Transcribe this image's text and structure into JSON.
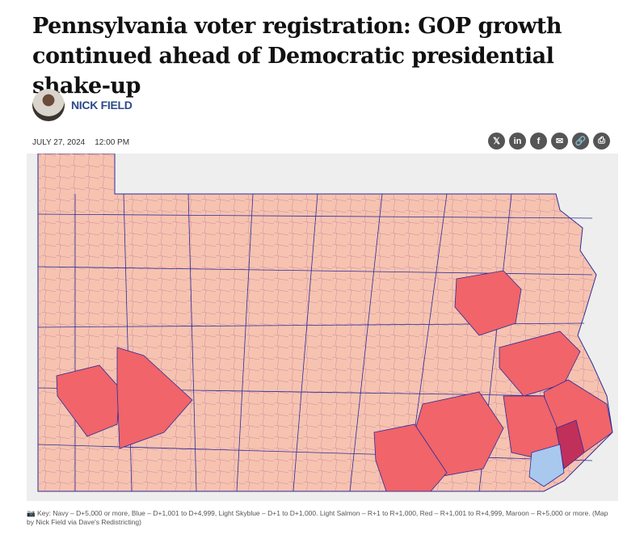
{
  "headline": "Pennsylvania voter registration: GOP growth continued ahead of Democratic presidential shake-up",
  "author": {
    "name": "NICK FIELD"
  },
  "meta": {
    "date": "JULY 27, 2024",
    "time": "12:00 PM"
  },
  "share": [
    {
      "icon": "x-icon",
      "glyph": "𝕏"
    },
    {
      "icon": "linkedin-icon",
      "glyph": "in"
    },
    {
      "icon": "facebook-icon",
      "glyph": "f"
    },
    {
      "icon": "email-icon",
      "glyph": "✉"
    },
    {
      "icon": "link-icon",
      "glyph": "🔗"
    },
    {
      "icon": "print-icon",
      "glyph": "⎙"
    }
  ],
  "map": {
    "colors": {
      "light_salmon": "#f6c3b0",
      "red": "#f0646a",
      "maroon": "#c0305a",
      "light_skyblue": "#a9c8ee",
      "border": "#2b2b9a",
      "background": "#eeeeee"
    }
  },
  "caption": {
    "icon": "camera-icon",
    "text": "Key: Navy – D+5,000 or more, Blue – D+1,001 to D+4,999, Light Skyblue – D+1 to D+1,000. Light Salmon – R+1 to R+1,000, Red – R+1,001 to R+4,999, Maroon – R+5,000 or more. (Map by Nick Field via Dave's Redistricting)"
  }
}
